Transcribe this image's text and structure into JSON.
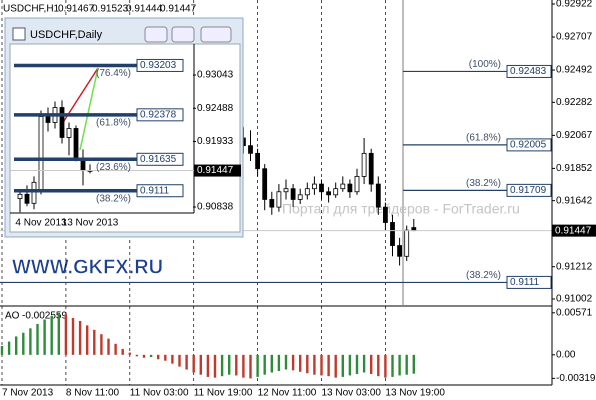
{
  "banner": "WWW.GKFX.RU",
  "watermark": "Портал для трейдеров - ForTrader.ru",
  "chart_data": [
    {
      "type": "candlestick",
      "title": "USDCHF,H1",
      "categories": [
        "7 Nov 2013",
        null,
        null,
        null,
        null,
        null,
        null,
        null,
        null,
        "8 Nov 11:00",
        null,
        null,
        null,
        null,
        null,
        null,
        null,
        null,
        "11 Nov 03:00",
        null,
        null,
        null,
        null,
        null,
        null,
        null,
        null,
        "11 Nov 19:00",
        null,
        null,
        null,
        null,
        null,
        null,
        null,
        null,
        "12 Nov 11:00",
        null,
        null,
        null,
        null,
        null,
        null,
        null,
        null,
        "13 Nov 03:00",
        null,
        null,
        null,
        null,
        null,
        null,
        null,
        null,
        "13 Nov 19:00",
        null,
        null,
        null,
        null
      ],
      "open": [
        null,
        null,
        null,
        null,
        null,
        null,
        null,
        null,
        null,
        null,
        null,
        null,
        null,
        null,
        null,
        null,
        null,
        null,
        null,
        null,
        null,
        null,
        null,
        null,
        null,
        null,
        null,
        null,
        null,
        null,
        null,
        null,
        null,
        null,
        0.9205,
        0.92,
        0.9195,
        0.9185,
        0.9165,
        0.916,
        0.917,
        0.9172,
        0.9165,
        0.9168,
        0.9172,
        0.9175,
        0.917,
        0.9168,
        0.9172,
        0.9175,
        0.917,
        0.918,
        0.9195,
        0.9175,
        0.916,
        0.915,
        0.9135,
        0.9128,
        0.91467
      ],
      "high": [
        null,
        null,
        null,
        null,
        null,
        null,
        null,
        null,
        null,
        null,
        null,
        null,
        null,
        null,
        null,
        null,
        null,
        null,
        null,
        null,
        null,
        null,
        null,
        null,
        null,
        null,
        null,
        null,
        null,
        null,
        null,
        null,
        null,
        null,
        0.9212,
        0.921,
        0.9198,
        0.9188,
        0.917,
        0.9175,
        0.9178,
        0.9175,
        0.9172,
        0.9176,
        0.918,
        0.9178,
        0.9173,
        0.9176,
        0.918,
        0.9178,
        0.9185,
        0.9205,
        0.9198,
        0.918,
        0.9163,
        0.9155,
        0.914,
        0.9148,
        0.91523
      ],
      "low": [
        null,
        null,
        null,
        null,
        null,
        null,
        null,
        null,
        null,
        null,
        null,
        null,
        null,
        null,
        null,
        null,
        null,
        null,
        null,
        null,
        null,
        null,
        null,
        null,
        null,
        null,
        null,
        null,
        null,
        null,
        null,
        null,
        null,
        null,
        0.9195,
        0.919,
        0.918,
        0.9158,
        0.9155,
        0.9157,
        0.9165,
        0.916,
        0.9162,
        0.9165,
        0.9168,
        0.9165,
        0.9163,
        0.9166,
        0.917,
        0.9166,
        0.9168,
        0.9175,
        0.917,
        0.9155,
        0.9145,
        0.9128,
        0.9122,
        0.9125,
        0.91444
      ],
      "close": [
        null,
        null,
        null,
        null,
        null,
        null,
        null,
        null,
        null,
        null,
        null,
        null,
        null,
        null,
        null,
        null,
        null,
        null,
        null,
        null,
        null,
        null,
        null,
        null,
        null,
        null,
        null,
        null,
        null,
        null,
        null,
        null,
        null,
        null,
        0.92,
        0.9195,
        0.9185,
        0.9165,
        0.916,
        0.917,
        0.9172,
        0.9165,
        0.9168,
        0.9172,
        0.9175,
        0.917,
        0.9168,
        0.9172,
        0.9175,
        0.917,
        0.918,
        0.9195,
        0.9175,
        0.916,
        0.915,
        0.9135,
        0.9128,
        0.9145,
        0.91447
      ],
      "up_color": "#ffffff",
      "down_color": "#000000",
      "ylim": [
        0.90963,
        0.92948
      ],
      "yticks": [
        0.92922,
        0.92707,
        0.92492,
        0.92282,
        0.92067,
        0.91852,
        0.91642,
        0.91212,
        0.91002
      ],
      "levels": [
        {
          "label": "(100%)",
          "value": 0.92483
        },
        {
          "label": "(61.8%)",
          "value": 0.92005
        },
        {
          "label": "(38.2%)",
          "value": 0.91709
        },
        {
          "label": "(38.2%)",
          "value": 0.9111
        }
      ]
    },
    {
      "type": "bar",
      "title": "AO",
      "values": [
        0.0012,
        0.0018,
        0.0025,
        0.003,
        0.0036,
        0.0042,
        0.0048,
        0.0053,
        0.0057,
        0.0055,
        0.005,
        0.0046,
        0.004,
        0.0034,
        0.0028,
        0.0022,
        0.0015,
        0.0008,
        0.0003,
        -0.0002,
        -0.0004,
        -0.0003,
        -0.0006,
        -0.0008,
        -0.0012,
        -0.0016,
        -0.002,
        -0.0024,
        -0.0027,
        -0.003,
        -0.0031,
        -0.0029,
        -0.0027,
        -0.0028,
        -0.0031,
        -0.0032,
        -0.003,
        -0.0027,
        -0.0024,
        -0.0022,
        -0.002,
        -0.0021,
        -0.0023,
        -0.0025,
        -0.0027,
        -0.0028,
        -0.0029,
        -0.0031,
        -0.003,
        -0.0028,
        -0.0026,
        -0.0024,
        -0.0026,
        -0.0029,
        -0.0031,
        -0.003,
        -0.0028,
        -0.0027,
        -0.002559
      ],
      "up_color": "#2e8b3a",
      "down_color": "#c0392b",
      "ylim": [
        -0.0041,
        0.0065
      ],
      "yticks": [
        0.00571,
        {
          "value": 0,
          "label": "0.00"
        },
        -0.003198
      ]
    },
    {
      "type": "candlestick",
      "title": "USDCHF,Daily",
      "categories": [
        null,
        null,
        null,
        "4 Nov 2013",
        null,
        null,
        null,
        null,
        null,
        null,
        "13 Nov 2013"
      ],
      "open": [
        0.9098,
        0.9105,
        0.909,
        0.911,
        0.9235,
        0.9225,
        0.925,
        0.92,
        0.9215,
        0.9165,
        0.9145
      ],
      "high": [
        0.911,
        0.912,
        0.9135,
        0.9245,
        0.925,
        0.926,
        0.9262,
        0.9225,
        0.922,
        0.918,
        0.9155
      ],
      "low": [
        0.9075,
        0.9085,
        0.908,
        0.9105,
        0.921,
        0.9215,
        0.919,
        0.917,
        0.916,
        0.912,
        0.914
      ],
      "close": [
        0.9105,
        0.909,
        0.9125,
        0.9235,
        0.9225,
        0.925,
        0.92,
        0.9215,
        0.9165,
        0.9145,
        0.91447
      ],
      "up_color": "#ffffff",
      "down_color": "#000000",
      "ylim": [
        0.90738,
        0.93461
      ],
      "yticks": [
        0.93043,
        0.92488,
        0.91933,
        0.90838
      ],
      "levels": [
        {
          "label": "(76.4%)",
          "value": 0.93203
        },
        {
          "label": "(61.8%)",
          "value": 0.92378
        },
        {
          "label": "(23.6%)",
          "value": 0.91635
        },
        {
          "label": "(38.2%)",
          "value": 0.9111
        }
      ]
    }
  ]
}
